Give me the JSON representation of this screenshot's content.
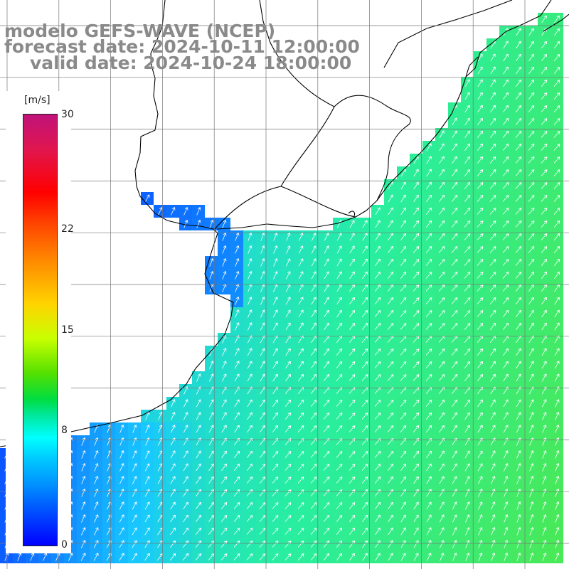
{
  "title": {
    "line1": "modelo GEFS-WAVE (NCEP)",
    "line2": "forecast date: 2024-10-11 12:00:00",
    "line3": "valid date: 2024-10-24 18:00:00"
  },
  "legend": {
    "unit": "[m/s]",
    "min": 0,
    "max": 30,
    "ticks": [
      {
        "value": 30,
        "label": "30"
      },
      {
        "value": 22,
        "label": "22"
      },
      {
        "value": 15,
        "label": "15"
      },
      {
        "value": 8,
        "label": "8"
      },
      {
        "value": 0,
        "label": "0"
      }
    ],
    "colors": [
      "#0000ff",
      "#0050ff",
      "#0090ff",
      "#00c8ff",
      "#00ffff",
      "#00e8a0",
      "#00dd40",
      "#55e000",
      "#c8ff00",
      "#ffd400",
      "#ff8a00",
      "#ff4a00",
      "#ff0000",
      "#e0164f",
      "#c0127a"
    ]
  },
  "map": {
    "variable": "wind speed and direction",
    "land_color": "#ffffff",
    "coastline_color": "#000000",
    "grid_color": "#777777",
    "vector_color": "#ffffff",
    "field_colors": {
      "weak": "#0a48ff",
      "mid": "#18c8ff",
      "strong": "#36ef52"
    }
  }
}
